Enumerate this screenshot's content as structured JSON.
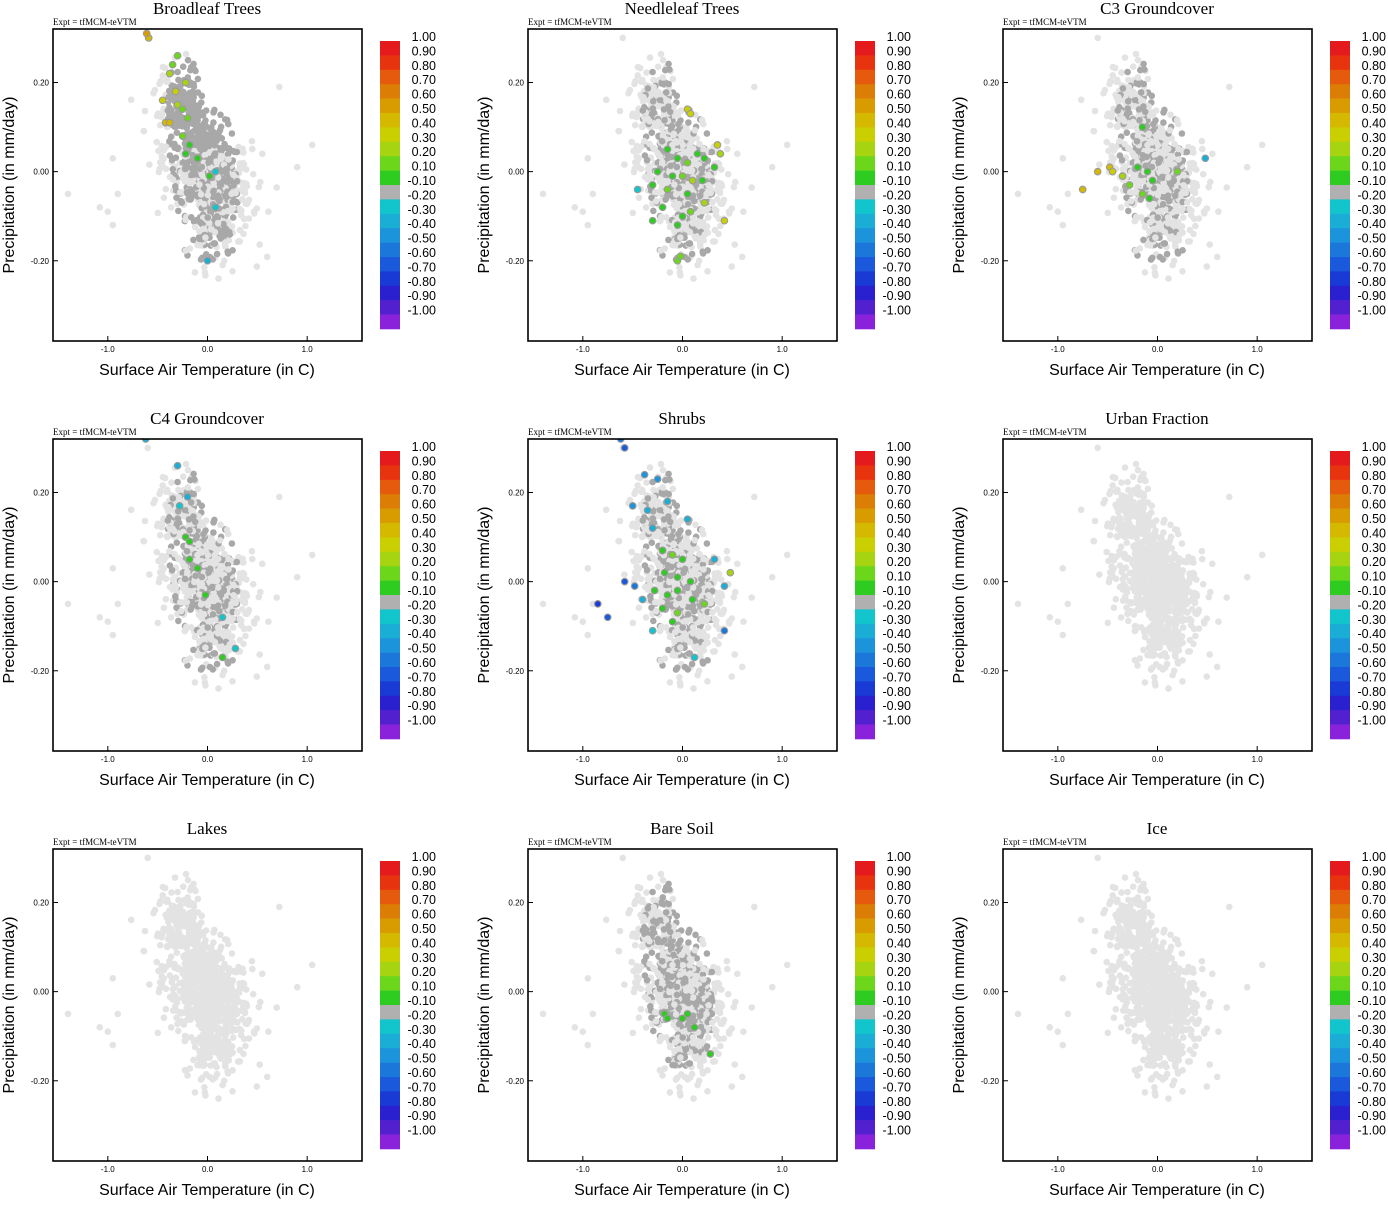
{
  "figure": {
    "xlabel": "Surface Air Temperature (in C)",
    "ylabel": "Precipitation (in mm/day)",
    "expt_label": "Expt = tfMCM-teVTM",
    "xlim": [
      -1.55,
      1.55
    ],
    "ylim": [
      -0.38,
      0.32
    ],
    "x_ticks": [
      -1.0,
      0.0,
      1.0
    ],
    "x_tick_labels": [
      "-1.0",
      "0.0",
      "1.0"
    ],
    "y_ticks": [
      -0.2,
      0.0,
      0.2
    ],
    "y_tick_labels": [
      "-0.20",
      "0.00",
      "0.20"
    ],
    "colorbar_labels": [
      "1.00",
      "0.90",
      "0.80",
      "0.70",
      "0.60",
      "0.50",
      "0.40",
      "0.30",
      "0.20",
      "0.10",
      "-0.10",
      "-0.20",
      "-0.30",
      "-0.40",
      "-0.50",
      "-0.60",
      "-0.70",
      "-0.80",
      "-0.90",
      "-1.00"
    ],
    "colorbar_colors": [
      "#e41a1c",
      "#e8330f",
      "#e55a0c",
      "#dc7d06",
      "#d99c00",
      "#d5b800",
      "#c9cf00",
      "#a7d410",
      "#6cd61b",
      "#2ecc20",
      "#b0b0b0",
      "#12c4cc",
      "#1aaed6",
      "#1c94db",
      "#1c77db",
      "#1a59db",
      "#1a3ad6",
      "#2a20d0",
      "#5220cf",
      "#8a22dc"
    ],
    "background_color": "#e3e3e3",
    "mid_color": "#a8a8a8"
  },
  "chart_data": [
    {
      "type": "scatter",
      "title": "Broadleaf Trees",
      "highlight_points": [
        {
          "x": -0.59,
          "y": 0.3,
          "c": 0.5
        },
        {
          "x": -0.61,
          "y": 0.31,
          "c": 0.6
        },
        {
          "x": -0.3,
          "y": 0.26,
          "c": 0.2
        },
        {
          "x": -0.35,
          "y": 0.24,
          "c": 0.2
        },
        {
          "x": -0.38,
          "y": 0.22,
          "c": 0.3
        },
        {
          "x": -0.22,
          "y": 0.2,
          "c": 0.3
        },
        {
          "x": -0.32,
          "y": 0.18,
          "c": 0.4
        },
        {
          "x": -0.45,
          "y": 0.16,
          "c": 0.4
        },
        {
          "x": -0.3,
          "y": 0.15,
          "c": 0.3
        },
        {
          "x": -0.25,
          "y": 0.14,
          "c": 0.2
        },
        {
          "x": -0.42,
          "y": 0.11,
          "c": 0.5
        },
        {
          "x": -0.38,
          "y": 0.11,
          "c": 0.5
        },
        {
          "x": -0.2,
          "y": 0.12,
          "c": 0.2
        },
        {
          "x": -0.25,
          "y": 0.08,
          "c": 0.2
        },
        {
          "x": -0.18,
          "y": 0.06,
          "c": 0.1
        },
        {
          "x": -0.22,
          "y": 0.04,
          "c": 0.1
        },
        {
          "x": -0.1,
          "y": 0.03,
          "c": 0.1
        },
        {
          "x": 0.02,
          "y": -0.01,
          "c": 0.1
        },
        {
          "x": 0.08,
          "y": 0.0,
          "c": -0.2
        },
        {
          "x": 0.08,
          "y": -0.08,
          "c": -0.2
        },
        {
          "x": 0.0,
          "y": -0.2,
          "c": -0.3
        }
      ]
    },
    {
      "type": "scatter",
      "title": "Needleleaf Trees",
      "highlight_points": [
        {
          "x": 0.05,
          "y": 0.14,
          "c": 0.4
        },
        {
          "x": 0.08,
          "y": 0.13,
          "c": 0.4
        },
        {
          "x": 0.35,
          "y": 0.06,
          "c": 0.4
        },
        {
          "x": 0.38,
          "y": 0.04,
          "c": 0.3
        },
        {
          "x": -0.15,
          "y": 0.05,
          "c": 0.1
        },
        {
          "x": -0.05,
          "y": 0.03,
          "c": 0.1
        },
        {
          "x": 0.05,
          "y": 0.02,
          "c": 0.2
        },
        {
          "x": 0.15,
          "y": 0.04,
          "c": 0.1
        },
        {
          "x": 0.22,
          "y": 0.03,
          "c": 0.1
        },
        {
          "x": 0.32,
          "y": 0.01,
          "c": 0.1
        },
        {
          "x": -0.25,
          "y": 0.0,
          "c": 0.1
        },
        {
          "x": -0.1,
          "y": -0.01,
          "c": 0.1
        },
        {
          "x": 0.0,
          "y": -0.01,
          "c": 0.2
        },
        {
          "x": 0.1,
          "y": -0.02,
          "c": 0.3
        },
        {
          "x": 0.2,
          "y": -0.02,
          "c": 0.1
        },
        {
          "x": -0.3,
          "y": -0.03,
          "c": 0.1
        },
        {
          "x": -0.15,
          "y": -0.04,
          "c": 0.2
        },
        {
          "x": 0.05,
          "y": -0.05,
          "c": 0.1
        },
        {
          "x": 0.22,
          "y": -0.07,
          "c": 0.3
        },
        {
          "x": -0.2,
          "y": -0.08,
          "c": 0.1
        },
        {
          "x": 0.0,
          "y": -0.1,
          "c": 0.1
        },
        {
          "x": 0.08,
          "y": -0.09,
          "c": 0.2
        },
        {
          "x": -0.3,
          "y": -0.11,
          "c": 0.1
        },
        {
          "x": -0.05,
          "y": -0.12,
          "c": 0.1
        },
        {
          "x": 0.42,
          "y": -0.11,
          "c": 0.4
        },
        {
          "x": -0.05,
          "y": -0.2,
          "c": 0.2
        },
        {
          "x": -0.02,
          "y": -0.19,
          "c": 0.2
        },
        {
          "x": -0.45,
          "y": -0.04,
          "c": -0.2
        }
      ]
    },
    {
      "type": "scatter",
      "title": "C3 Groundcover",
      "highlight_points": [
        {
          "x": -0.75,
          "y": -0.04,
          "c": 0.5
        },
        {
          "x": -0.6,
          "y": 0.0,
          "c": 0.5
        },
        {
          "x": -0.48,
          "y": 0.01,
          "c": 0.5
        },
        {
          "x": -0.45,
          "y": 0.0,
          "c": 0.4
        },
        {
          "x": -0.35,
          "y": -0.01,
          "c": 0.3
        },
        {
          "x": -0.15,
          "y": 0.1,
          "c": 0.1
        },
        {
          "x": -0.2,
          "y": 0.01,
          "c": 0.1
        },
        {
          "x": -0.1,
          "y": 0.0,
          "c": 0.1
        },
        {
          "x": -0.05,
          "y": -0.02,
          "c": 0.1
        },
        {
          "x": -0.28,
          "y": -0.03,
          "c": 0.2
        },
        {
          "x": -0.15,
          "y": -0.05,
          "c": 0.2
        },
        {
          "x": -0.08,
          "y": -0.06,
          "c": 0.1
        },
        {
          "x": 0.2,
          "y": 0.0,
          "c": 0.2
        },
        {
          "x": 0.48,
          "y": 0.03,
          "c": -0.3
        }
      ]
    },
    {
      "type": "scatter",
      "title": "C4 Groundcover",
      "highlight_points": [
        {
          "x": -0.62,
          "y": 0.32,
          "c": -0.3
        },
        {
          "x": -0.3,
          "y": 0.26,
          "c": -0.3
        },
        {
          "x": -0.2,
          "y": 0.19,
          "c": -0.3
        },
        {
          "x": -0.28,
          "y": 0.17,
          "c": -0.2
        },
        {
          "x": -0.22,
          "y": 0.1,
          "c": 0.1
        },
        {
          "x": -0.18,
          "y": 0.09,
          "c": 0.1
        },
        {
          "x": -0.18,
          "y": 0.05,
          "c": 0.1
        },
        {
          "x": -0.1,
          "y": 0.03,
          "c": 0.1
        },
        {
          "x": -0.02,
          "y": -0.03,
          "c": 0.1
        },
        {
          "x": 0.15,
          "y": -0.08,
          "c": -0.2
        },
        {
          "x": 0.28,
          "y": -0.15,
          "c": -0.2
        },
        {
          "x": 0.15,
          "y": -0.17,
          "c": 0.1
        }
      ]
    },
    {
      "type": "scatter",
      "title": "Shrubs",
      "highlight_points": [
        {
          "x": -0.62,
          "y": 0.32,
          "c": -0.5
        },
        {
          "x": -0.58,
          "y": 0.3,
          "c": -0.6
        },
        {
          "x": -0.38,
          "y": 0.24,
          "c": -0.4
        },
        {
          "x": -0.25,
          "y": 0.23,
          "c": -0.4
        },
        {
          "x": -0.5,
          "y": 0.17,
          "c": -0.4
        },
        {
          "x": -0.35,
          "y": 0.16,
          "c": -0.3
        },
        {
          "x": -0.15,
          "y": 0.18,
          "c": -0.3
        },
        {
          "x": 0.05,
          "y": 0.14,
          "c": -0.3
        },
        {
          "x": -0.3,
          "y": 0.12,
          "c": -0.3
        },
        {
          "x": -0.2,
          "y": 0.07,
          "c": 0.1
        },
        {
          "x": -0.1,
          "y": 0.06,
          "c": 0.2
        },
        {
          "x": 0.0,
          "y": 0.05,
          "c": 0.1
        },
        {
          "x": -0.18,
          "y": 0.02,
          "c": 0.1
        },
        {
          "x": -0.05,
          "y": 0.01,
          "c": 0.1
        },
        {
          "x": 0.08,
          "y": 0.0,
          "c": 0.1
        },
        {
          "x": 0.32,
          "y": 0.05,
          "c": -0.3
        },
        {
          "x": 0.48,
          "y": 0.02,
          "c": 0.3
        },
        {
          "x": 0.42,
          "y": -0.01,
          "c": -0.3
        },
        {
          "x": -0.85,
          "y": -0.05,
          "c": -0.7
        },
        {
          "x": -0.75,
          "y": -0.08,
          "c": -0.6
        },
        {
          "x": -0.58,
          "y": 0.0,
          "c": -0.6
        },
        {
          "x": -0.48,
          "y": -0.01,
          "c": -0.5
        },
        {
          "x": -0.4,
          "y": -0.04,
          "c": -0.3
        },
        {
          "x": -0.28,
          "y": -0.02,
          "c": 0.1
        },
        {
          "x": -0.15,
          "y": -0.03,
          "c": 0.1
        },
        {
          "x": -0.05,
          "y": -0.02,
          "c": 0.1
        },
        {
          "x": -0.2,
          "y": -0.06,
          "c": 0.1
        },
        {
          "x": -0.05,
          "y": -0.07,
          "c": 0.2
        },
        {
          "x": 0.1,
          "y": -0.04,
          "c": 0.1
        },
        {
          "x": 0.22,
          "y": -0.05,
          "c": 0.2
        },
        {
          "x": -0.1,
          "y": -0.09,
          "c": 0.1
        },
        {
          "x": -0.3,
          "y": -0.11,
          "c": -0.2
        },
        {
          "x": 0.42,
          "y": -0.11,
          "c": -0.5
        },
        {
          "x": 0.12,
          "y": -0.17,
          "c": -0.2
        }
      ]
    },
    {
      "type": "scatter",
      "title": "Urban Fraction",
      "highlight_points": []
    },
    {
      "type": "scatter",
      "title": "Lakes",
      "highlight_points": []
    },
    {
      "type": "scatter",
      "title": "Bare Soil",
      "highlight_points": [
        {
          "x": -0.18,
          "y": -0.05,
          "c": 0.1
        },
        {
          "x": -0.15,
          "y": -0.06,
          "c": 0.1
        },
        {
          "x": 0.0,
          "y": -0.06,
          "c": 0.1
        },
        {
          "x": 0.05,
          "y": -0.05,
          "c": 0.1
        },
        {
          "x": 0.12,
          "y": -0.08,
          "c": 0.1
        },
        {
          "x": 0.28,
          "y": -0.14,
          "c": 0.1
        }
      ]
    },
    {
      "type": "scatter",
      "title": "Ice",
      "highlight_points": []
    }
  ]
}
